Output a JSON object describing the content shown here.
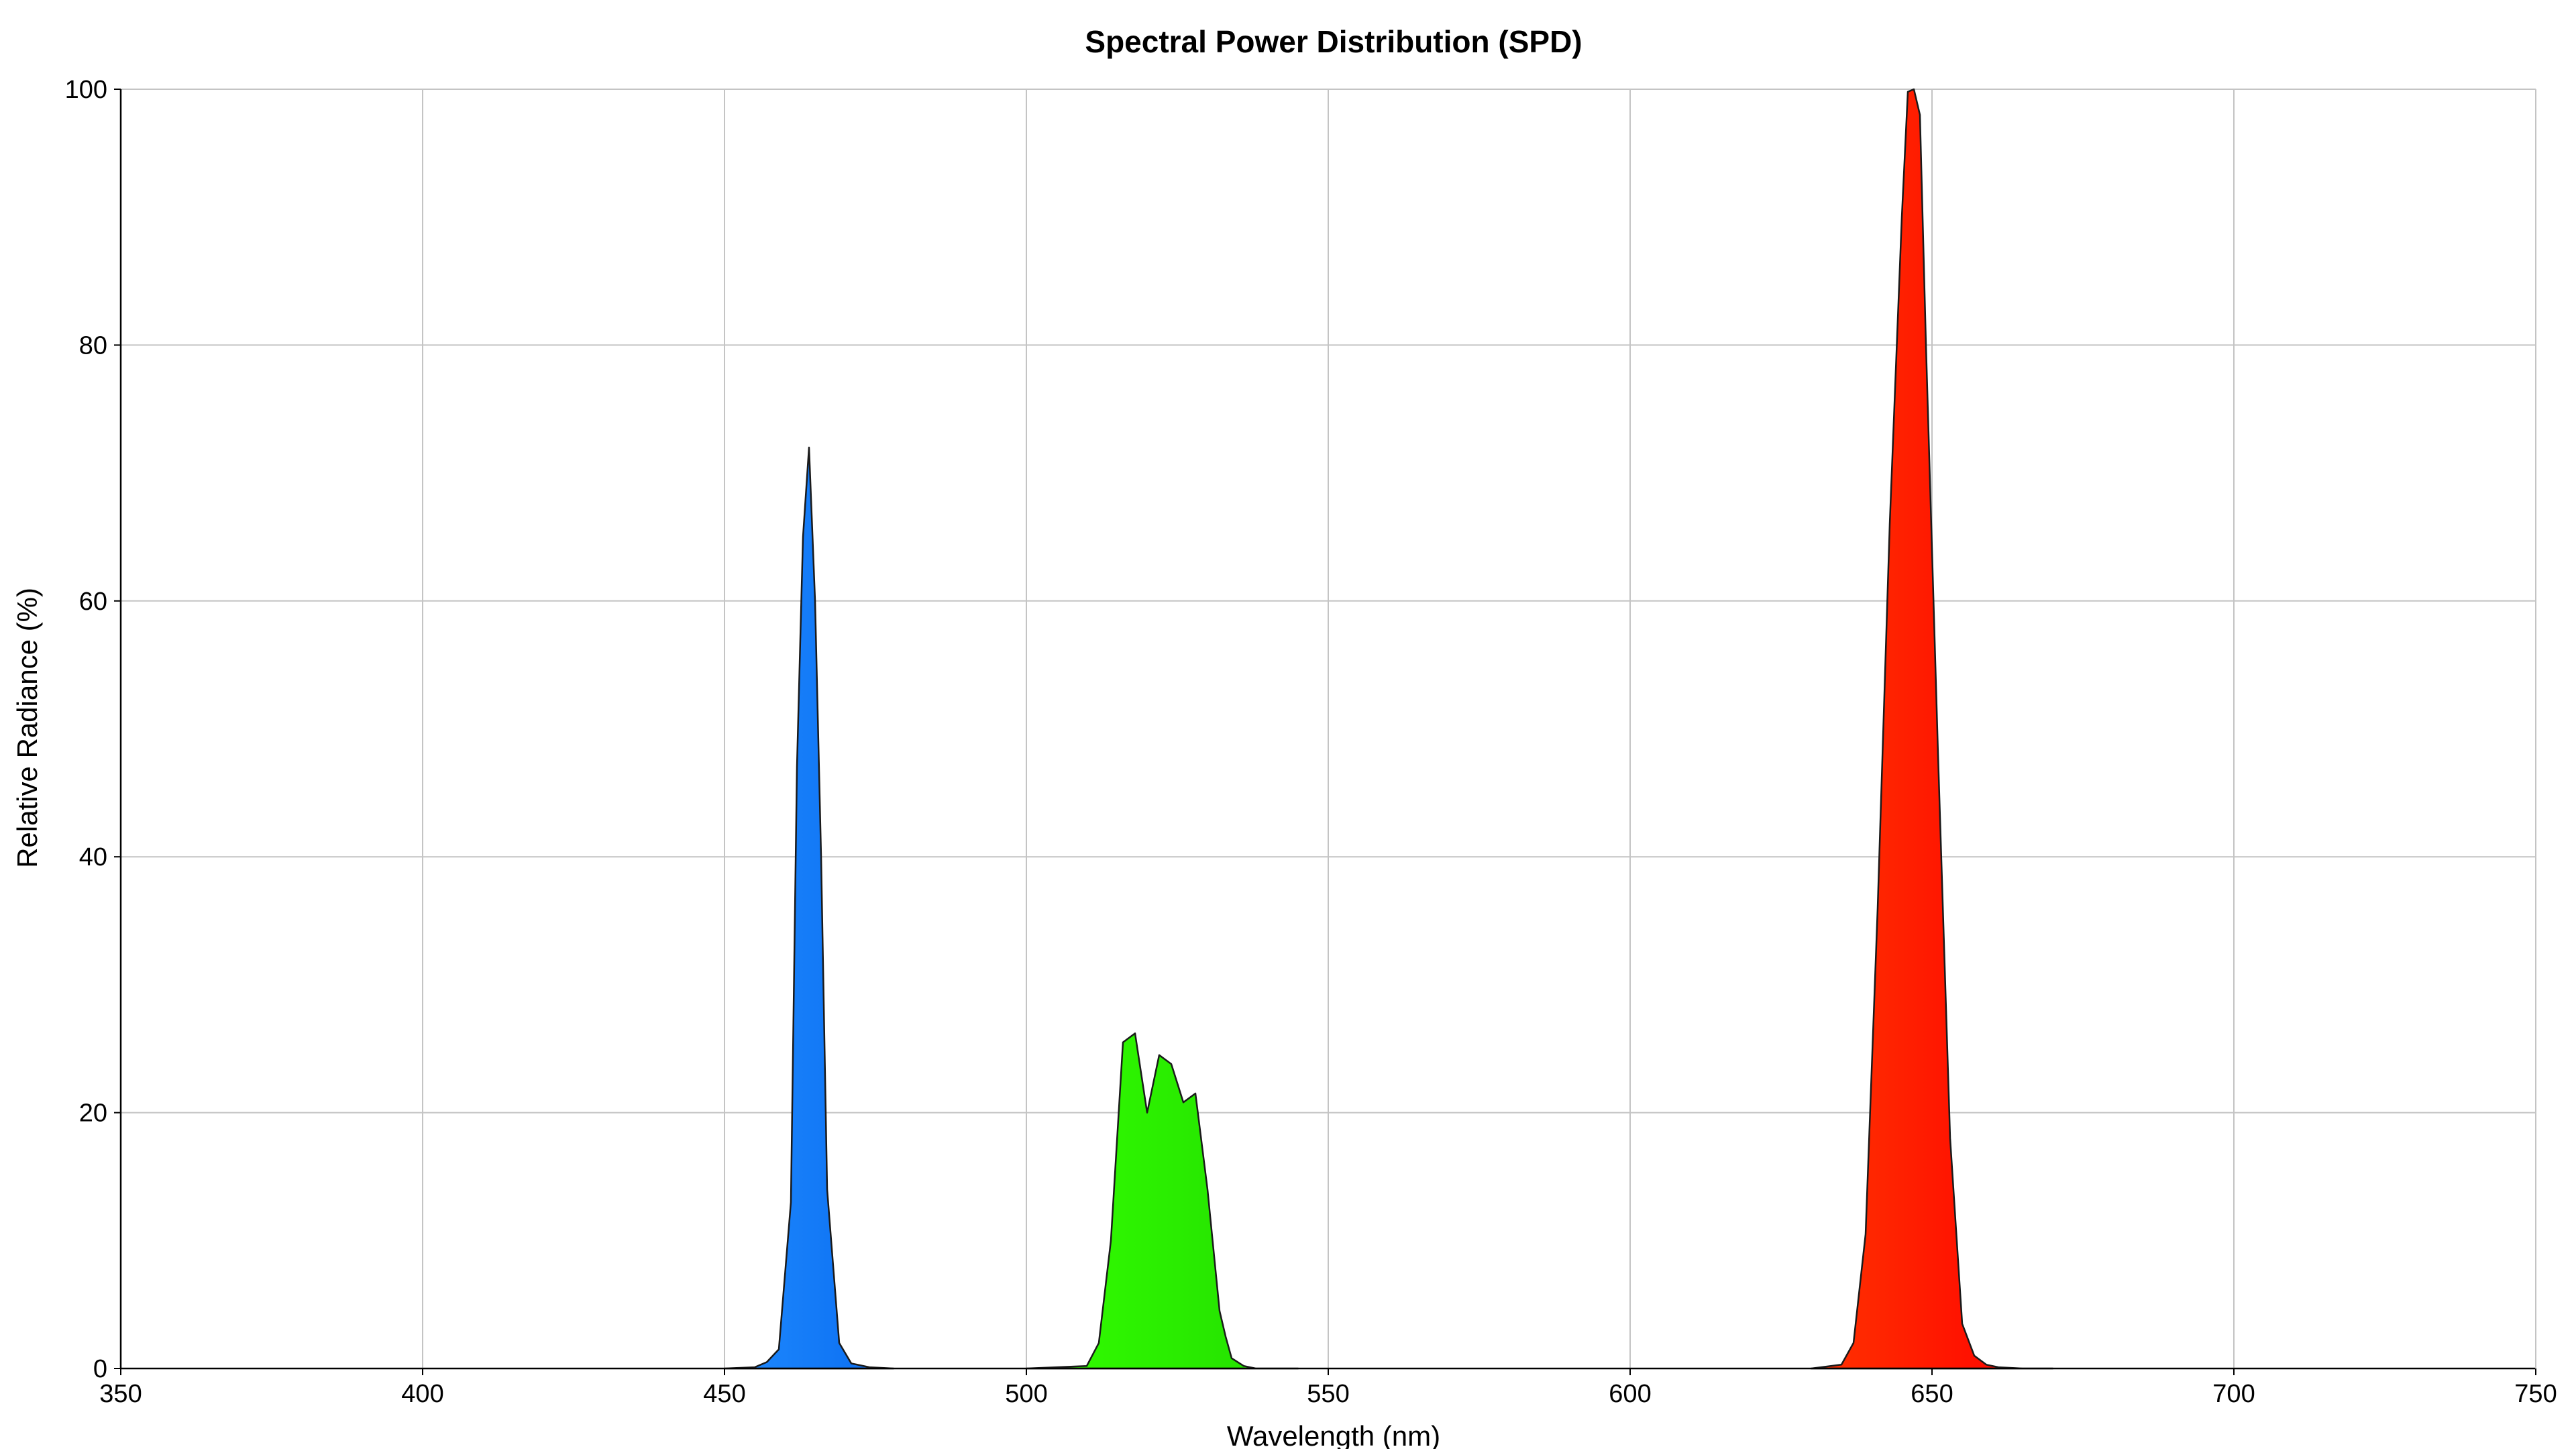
{
  "chart_data": {
    "type": "area",
    "title": "Spectral Power Distribution (SPD)",
    "xlabel": "Wavelength (nm)",
    "ylabel": "Relative Radiance (%)",
    "xlim": [
      350,
      750
    ],
    "ylim": [
      0,
      100
    ],
    "xticks": [
      350,
      400,
      450,
      500,
      550,
      600,
      650,
      700,
      750
    ],
    "yticks": [
      0,
      20,
      40,
      60,
      80,
      100
    ],
    "grid": true,
    "legend": "none",
    "series": [
      {
        "color": "#0a6cf0",
        "color_light": "#1f8bff",
        "x": [
          450,
          455,
          457,
          459,
          461,
          462,
          463,
          464,
          465,
          466,
          467,
          469,
          471,
          474,
          478
        ],
        "y": [
          0,
          0.1,
          0.5,
          1.5,
          13,
          47,
          65,
          72,
          60,
          40,
          14,
          2,
          0.4,
          0.1,
          0
        ]
      },
      {
        "color": "#22dd00",
        "color_light": "#33ff00",
        "x": [
          500,
          510,
          512,
          514,
          516,
          518,
          520,
          522,
          524,
          526,
          528,
          530,
          532,
          533,
          534,
          536,
          538,
          545
        ],
        "y": [
          0,
          0.2,
          2,
          10,
          25.5,
          26.2,
          20,
          24.5,
          23.8,
          20.8,
          21.5,
          14,
          4.5,
          2.5,
          0.8,
          0.2,
          0,
          0
        ]
      },
      {
        "color": "#ff0000",
        "color_light": "#ff3300",
        "x": [
          630,
          635,
          637,
          639,
          641,
          643,
          645,
          646,
          647,
          648,
          649,
          651,
          653,
          655,
          657,
          659,
          661,
          665,
          670
        ],
        "y": [
          0,
          0.3,
          2,
          10.5,
          36,
          66,
          90,
          99.8,
          100,
          98,
          80,
          48,
          18,
          3.5,
          1,
          0.3,
          0.1,
          0,
          0
        ]
      }
    ]
  }
}
